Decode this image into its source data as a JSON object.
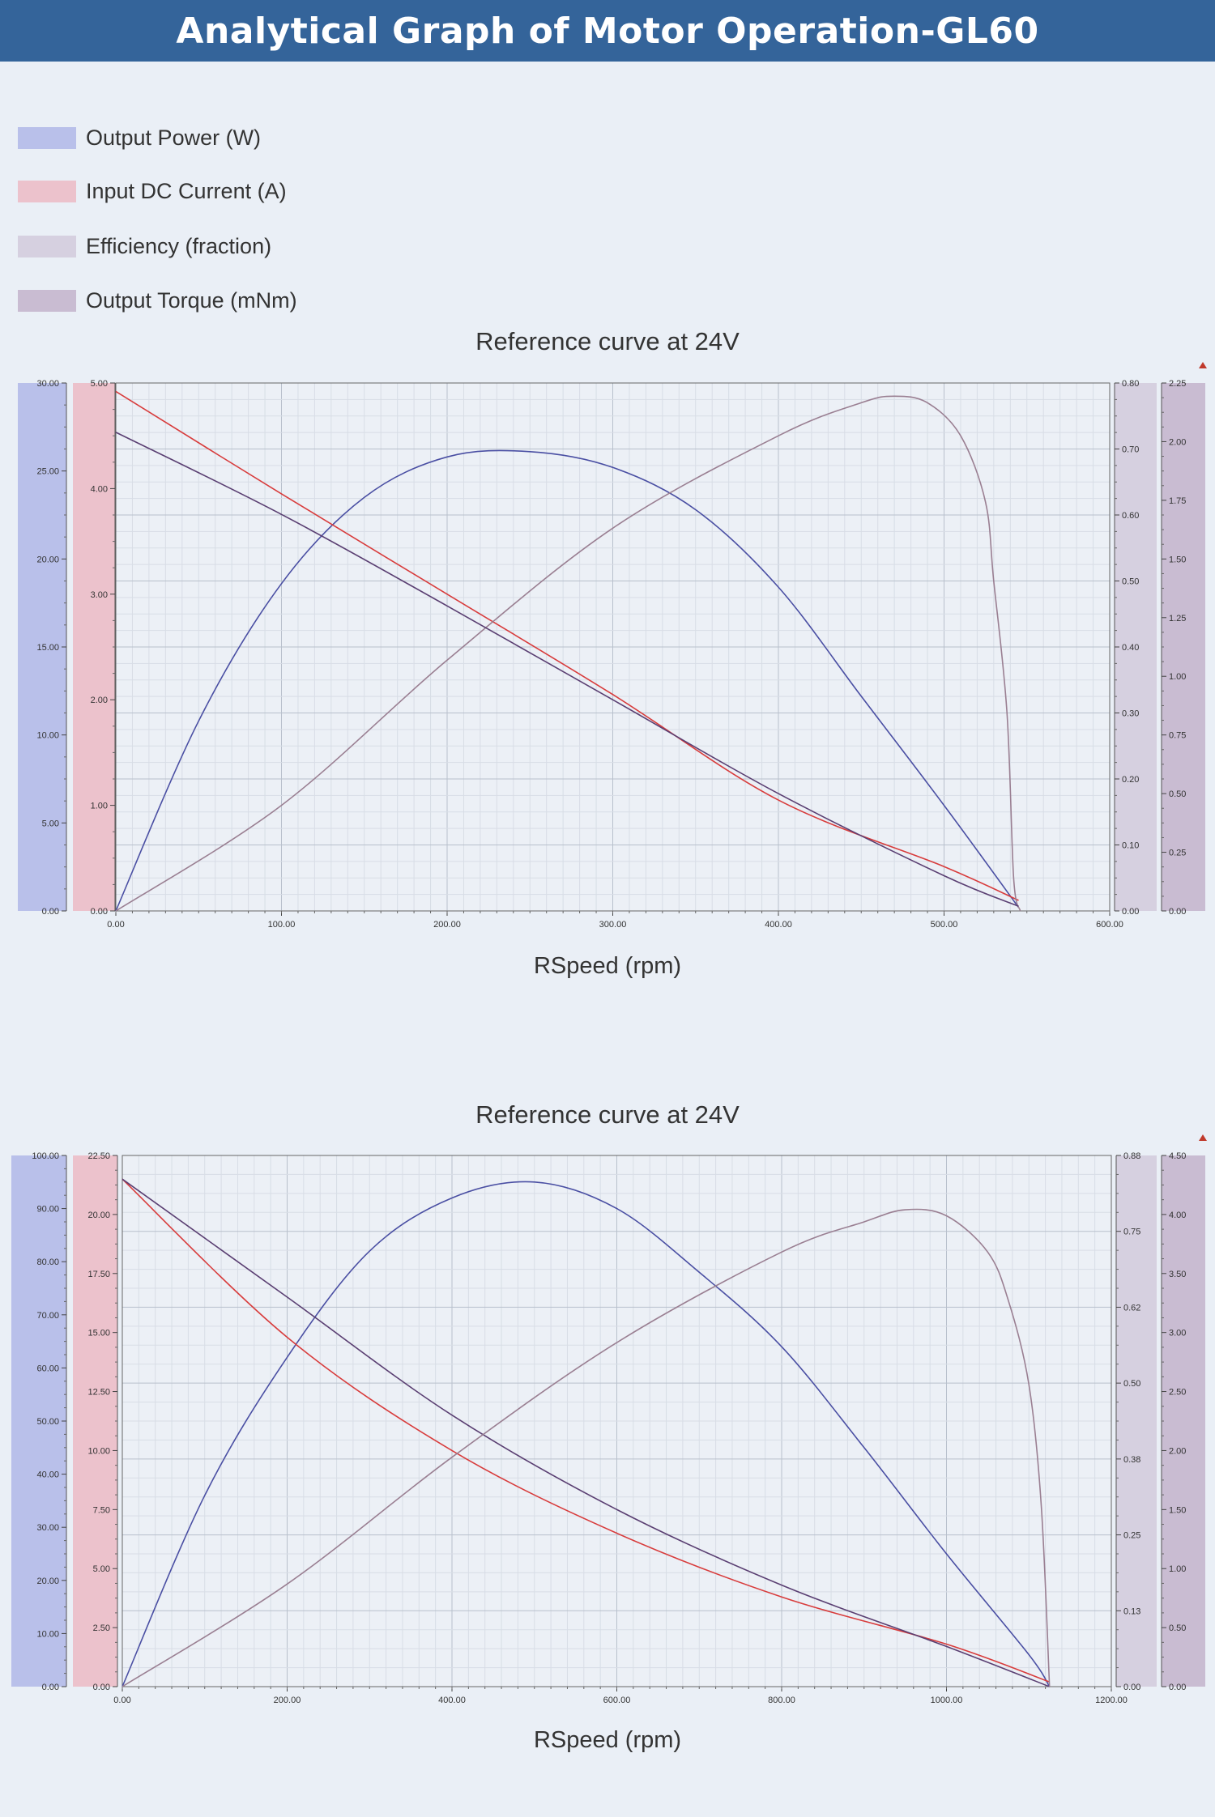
{
  "header": {
    "title": "Analytical Graph of Motor Operation-GL60"
  },
  "legend": [
    {
      "label": "Output Power (W)",
      "color": "#b9c0ea",
      "line": "#4a4fa3"
    },
    {
      "label": "Input DC Current (A)",
      "color": "#ecc2cc",
      "line": "#d83c3c"
    },
    {
      "label": "Efficiency (fraction)",
      "color": "#d6d0e0",
      "line": "#9a7f92"
    },
    {
      "label": "Output Torque (mNm)",
      "color": "#c9bcd2",
      "line": "#5a3f72"
    }
  ],
  "chart_data": [
    {
      "type": "line",
      "title": "Reference curve at 24V",
      "xlabel": "RSpeed (rpm)",
      "xlim": [
        0,
        600
      ],
      "x_ticks": [
        "0.00",
        "100.00",
        "200.00",
        "300.00",
        "400.00",
        "500.00",
        "600.00"
      ],
      "axes": {
        "power": {
          "lim": [
            0,
            30
          ],
          "ticks": [
            "0.00",
            "5.00",
            "10.00",
            "15.00",
            "20.00",
            "25.00",
            "30.00"
          ]
        },
        "current": {
          "lim": [
            0,
            5
          ],
          "ticks": [
            "0.00",
            "1.00",
            "2.00",
            "3.00",
            "4.00",
            "5.00"
          ]
        },
        "efficiency": {
          "lim": [
            0,
            0.8
          ],
          "ticks": [
            "0.00",
            "0.10",
            "0.20",
            "0.30",
            "0.40",
            "0.50",
            "0.60",
            "0.70",
            "0.80"
          ]
        },
        "torque": {
          "lim": [
            0,
            2.25
          ],
          "ticks": [
            "0.00",
            "0.25",
            "0.50",
            "0.75",
            "1.00",
            "1.25",
            "1.50",
            "1.75",
            "2.00",
            "2.25"
          ]
        }
      },
      "series": [
        {
          "name": "Output Power (W)",
          "axis": "power",
          "x": [
            0,
            50,
            100,
            150,
            200,
            250,
            300,
            350,
            400,
            450,
            500,
            545
          ],
          "y": [
            0,
            10.8,
            18.6,
            23.5,
            25.8,
            26.1,
            25.2,
            22.8,
            18.4,
            12.2,
            6.0,
            0.2
          ]
        },
        {
          "name": "Input DC Current (A)",
          "axis": "current",
          "x": [
            0,
            100,
            200,
            300,
            400,
            500,
            545
          ],
          "y": [
            4.92,
            3.95,
            3.0,
            2.05,
            1.05,
            0.42,
            0.1
          ]
        },
        {
          "name": "Efficiency (fraction)",
          "axis": "efficiency",
          "x": [
            0,
            100,
            200,
            300,
            400,
            450,
            470,
            490,
            510,
            525,
            530,
            538,
            542,
            546
          ],
          "y": [
            0,
            0.16,
            0.38,
            0.58,
            0.72,
            0.77,
            0.78,
            0.77,
            0.72,
            0.62,
            0.5,
            0.3,
            0.05,
            0
          ]
        },
        {
          "name": "Output Torque (mNm)",
          "axis": "torque",
          "x": [
            0,
            100,
            200,
            300,
            400,
            500,
            545
          ],
          "y": [
            2.04,
            1.69,
            1.3,
            0.9,
            0.5,
            0.15,
            0.02
          ]
        }
      ]
    },
    {
      "type": "line",
      "title": "Reference curve at 24V",
      "xlabel": "RSpeed (rpm)",
      "xlim": [
        0,
        1200
      ],
      "x_ticks": [
        "0.00",
        "200.00",
        "400.00",
        "600.00",
        "800.00",
        "1000.00",
        "1200.00"
      ],
      "axes": {
        "power": {
          "lim": [
            0,
            100
          ],
          "ticks": [
            "0.00",
            "10.00",
            "20.00",
            "30.00",
            "40.00",
            "50.00",
            "60.00",
            "70.00",
            "80.00",
            "90.00",
            "100.00"
          ]
        },
        "current": {
          "lim": [
            0,
            22.5
          ],
          "ticks": [
            "0.00",
            "2.50",
            "5.00",
            "7.50",
            "10.00",
            "12.50",
            "15.00",
            "17.50",
            "20.00",
            "22.50"
          ]
        },
        "efficiency": {
          "lim": [
            0,
            0.88
          ],
          "ticks": [
            "0.00",
            "0.13",
            "0.25",
            "0.38",
            "0.50",
            "0.62",
            "0.75",
            "0.88"
          ]
        },
        "torque": {
          "lim": [
            0,
            4.5
          ],
          "ticks": [
            "0.00",
            "0.50",
            "1.00",
            "1.50",
            "2.00",
            "2.50",
            "3.00",
            "3.50",
            "4.00",
            "4.50"
          ]
        }
      },
      "series": [
        {
          "name": "Output Power (W)",
          "axis": "power",
          "x": [
            0,
            100,
            200,
            300,
            400,
            500,
            600,
            700,
            800,
            900,
            1000,
            1100,
            1125
          ],
          "y": [
            0,
            36,
            62,
            82,
            92,
            95,
            90,
            78,
            64,
            45,
            25,
            6,
            0
          ]
        },
        {
          "name": "Input DC Current (A)",
          "axis": "current",
          "x": [
            0,
            200,
            400,
            600,
            800,
            1000,
            1125
          ],
          "y": [
            21.5,
            14.8,
            10.0,
            6.5,
            3.8,
            1.8,
            0.2
          ]
        },
        {
          "name": "Output Torque (mNm)",
          "axis": "torque",
          "x": [
            0,
            200,
            400,
            600,
            800,
            1000,
            1125
          ],
          "y": [
            4.3,
            3.3,
            2.3,
            1.5,
            0.86,
            0.34,
            0
          ]
        },
        {
          "name": "Efficiency (fraction)",
          "axis": "efficiency",
          "x": [
            0,
            200,
            400,
            600,
            800,
            900,
            950,
            1000,
            1050,
            1075,
            1100,
            1115,
            1125
          ],
          "y": [
            0,
            0.17,
            0.38,
            0.57,
            0.72,
            0.77,
            0.79,
            0.78,
            0.72,
            0.64,
            0.5,
            0.3,
            0
          ]
        }
      ]
    }
  ]
}
